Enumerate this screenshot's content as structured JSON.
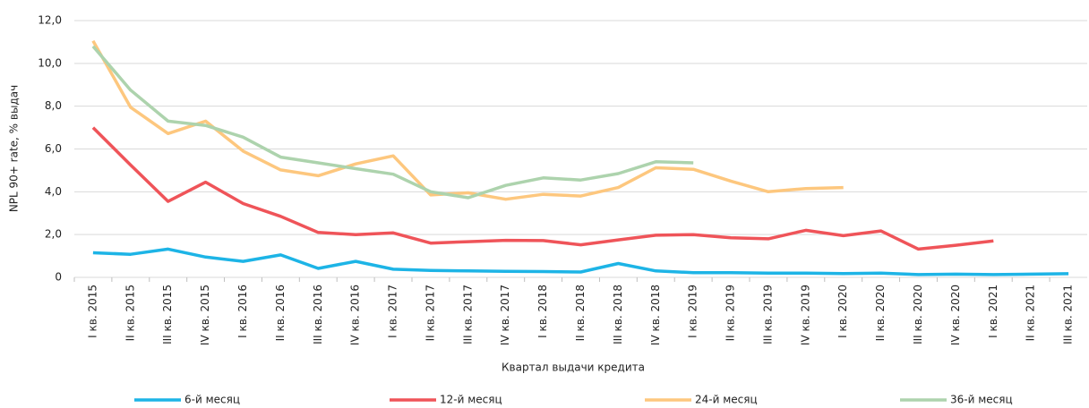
{
  "chart_data": {
    "type": "line",
    "y_label": "NPL 90+ rate, % выдач",
    "x_label": "Квартал выдачи  кредита",
    "categories": [
      "I кв. 2015",
      "II кв. 2015",
      "III кв. 2015",
      "IV кв. 2015",
      "I кв. 2016",
      "II кв. 2016",
      "III кв. 2016",
      "IV кв. 2016",
      "I кв. 2017",
      "II кв. 2017",
      "III кв. 2017",
      "IV кв. 2017",
      "I кв. 2018",
      "II кв. 2018",
      "III кв. 2018",
      "IV кв. 2018",
      "I кв. 2019",
      "II кв. 2019",
      "III кв. 2019",
      "IV кв. 2019",
      "I кв. 2020",
      "II кв. 2020",
      "III кв. 2020",
      "IV кв. 2020",
      "I кв. 2021",
      "II кв. 2021",
      "III кв. 2021"
    ],
    "series": [
      {
        "name": "6-й месяц",
        "color": "#1db4e6",
        "values": [
          1.15,
          1.08,
          1.32,
          0.95,
          0.75,
          1.05,
          0.42,
          0.75,
          0.38,
          0.32,
          0.3,
          0.28,
          0.27,
          0.25,
          0.65,
          0.3,
          0.22,
          0.22,
          0.2,
          0.2,
          0.18,
          0.2,
          0.13,
          0.15,
          0.13,
          0.15,
          0.17
        ]
      },
      {
        "name": "12-й месяц",
        "color": "#ef5459",
        "values": [
          7.0,
          5.25,
          3.55,
          4.45,
          3.45,
          2.85,
          2.1,
          2.0,
          2.08,
          1.6,
          1.67,
          1.73,
          1.72,
          1.52,
          1.75,
          1.97,
          2.0,
          1.85,
          1.8,
          2.2,
          1.95,
          2.17,
          1.32,
          1.5,
          1.7,
          null,
          null
        ]
      },
      {
        "name": "24-й месяц",
        "color": "#fdc77e",
        "values": [
          11.05,
          7.95,
          6.72,
          7.3,
          5.9,
          5.02,
          4.75,
          5.3,
          5.68,
          3.85,
          3.95,
          3.65,
          3.88,
          3.8,
          4.2,
          5.12,
          5.05,
          4.5,
          4.0,
          4.15,
          4.2,
          null,
          null,
          null,
          null,
          null,
          null
        ]
      },
      {
        "name": "36-й месяц",
        "color": "#add3ad",
        "values": [
          10.8,
          8.75,
          7.3,
          7.1,
          6.55,
          5.62,
          5.35,
          5.08,
          4.82,
          4.0,
          3.72,
          4.3,
          4.65,
          4.55,
          4.85,
          5.4,
          5.35,
          null,
          null,
          null,
          null,
          null,
          null,
          null,
          null,
          null,
          null
        ]
      }
    ],
    "ylim": [
      0,
      12
    ],
    "yticks": [
      0,
      {
        "value": 2,
        "label": "2,0"
      },
      {
        "value": 4,
        "label": "4,0"
      },
      {
        "value": 6,
        "label": "6,0"
      },
      {
        "value": 8,
        "label": "8,0"
      },
      {
        "value": 10,
        "label": "10,0"
      },
      {
        "value": 12,
        "label": "12,0"
      }
    ],
    "grid": true
  }
}
